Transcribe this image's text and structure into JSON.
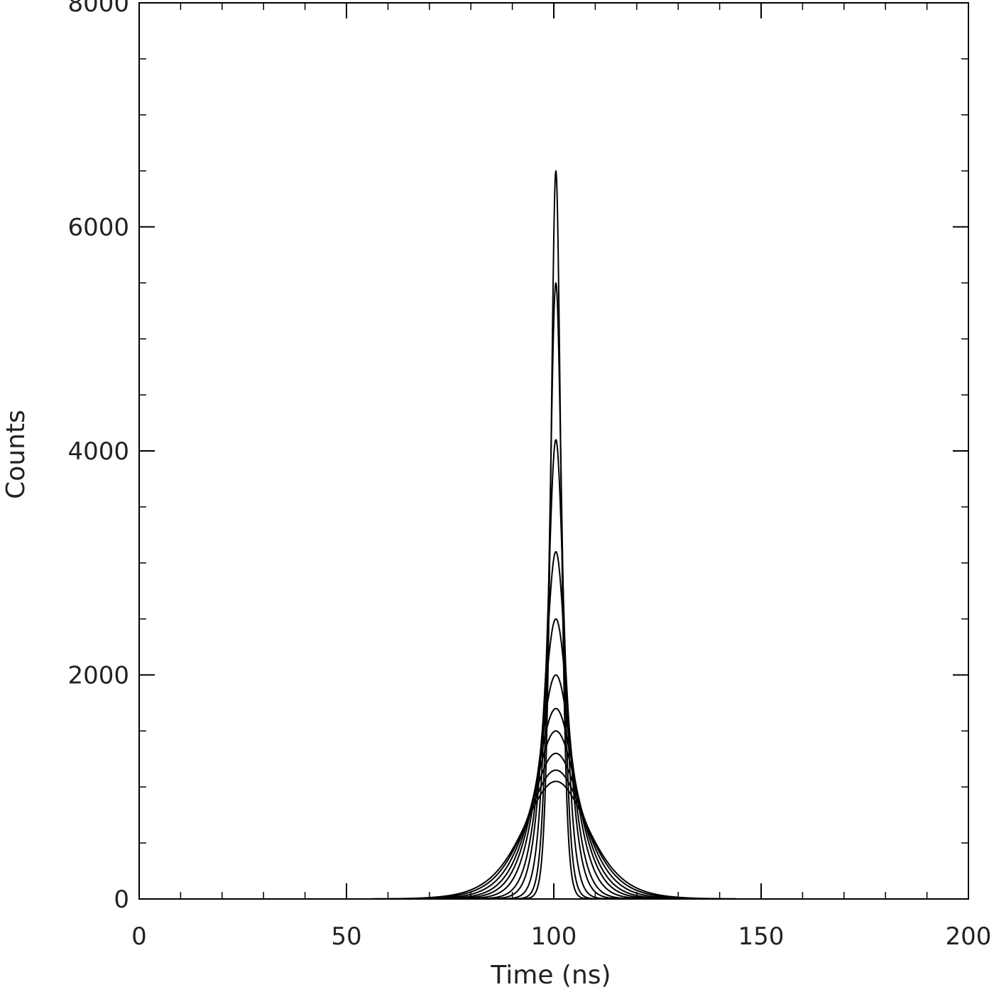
{
  "chart_data": {
    "type": "line",
    "title": "",
    "xlabel": "Time (ns)",
    "ylabel": "Counts",
    "xlim": [
      0,
      200
    ],
    "ylim": [
      0,
      8000
    ],
    "x_ticks": [
      0,
      50,
      100,
      150,
      200
    ],
    "x_tick_labels": [
      "0",
      "50",
      "100",
      "150",
      "200"
    ],
    "y_ticks": [
      0,
      2000,
      4000,
      6000,
      8000
    ],
    "y_tick_labels": [
      "0",
      "2000",
      "4000",
      "6000",
      "8000"
    ],
    "x_minor_step": 10,
    "y_minor_step": 500,
    "grid": false,
    "line_color": "#000000",
    "series": [
      {
        "center": 100.5,
        "peak": 6500,
        "width_ns": 1.6
      },
      {
        "center": 100.5,
        "peak": 5500,
        "width_ns": 2.0
      },
      {
        "center": 100.5,
        "peak": 4100,
        "width_ns": 2.7
      },
      {
        "center": 100.5,
        "peak": 3100,
        "width_ns": 3.6
      },
      {
        "center": 100.5,
        "peak": 2500,
        "width_ns": 4.4
      },
      {
        "center": 100.5,
        "peak": 2000,
        "width_ns": 5.5
      },
      {
        "center": 100.5,
        "peak": 1700,
        "width_ns": 6.5
      },
      {
        "center": 100.5,
        "peak": 1500,
        "width_ns": 7.4
      },
      {
        "center": 100.5,
        "peak": 1300,
        "width_ns": 8.5
      },
      {
        "center": 100.5,
        "peak": 1150,
        "width_ns": 9.6
      },
      {
        "center": 100.5,
        "peak": 1050,
        "width_ns": 10.5
      }
    ]
  }
}
